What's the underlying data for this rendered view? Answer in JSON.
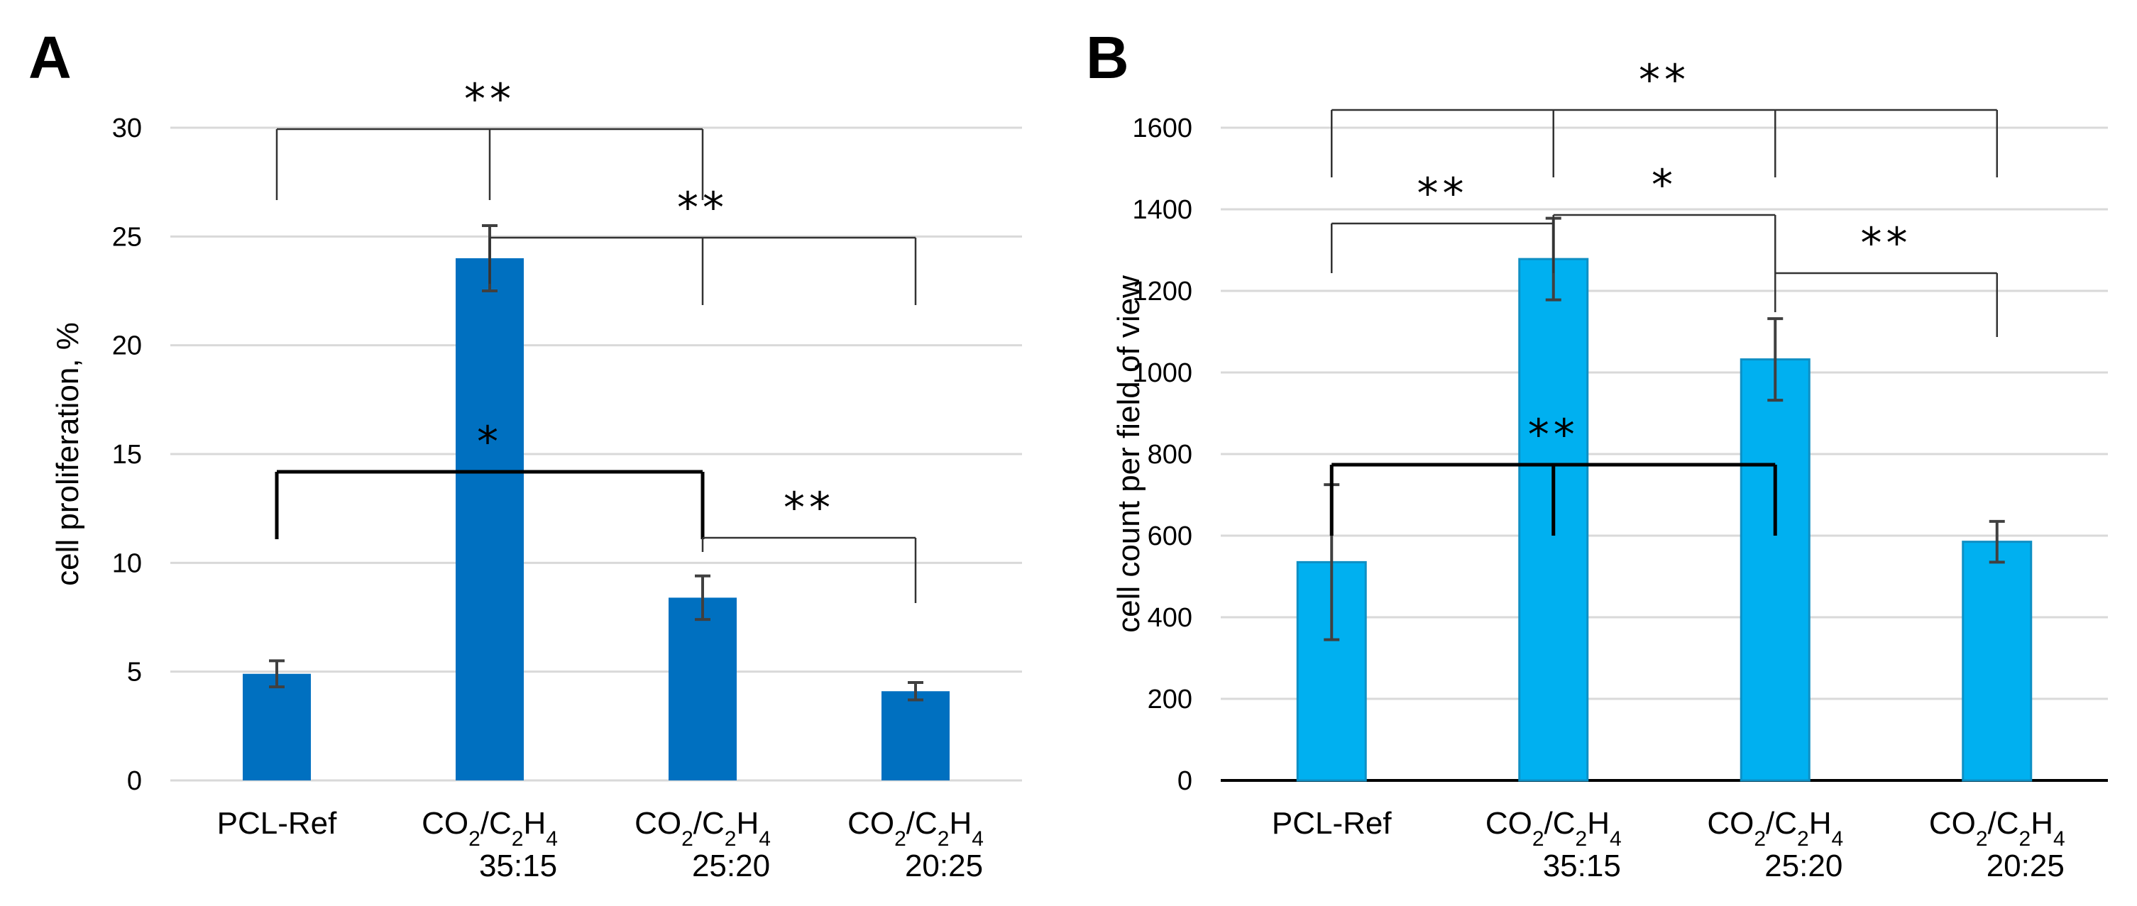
{
  "chart_data": [
    {
      "panel": "A",
      "type": "bar",
      "ylabel": "cell proliferation, %",
      "ylim": [
        0,
        30
      ],
      "yticks": [
        0,
        5,
        10,
        15,
        20,
        25,
        30
      ],
      "grid": true,
      "bar_color": "#0070c0",
      "categories": [
        {
          "name": "PCL-Ref"
        },
        {
          "name": "CO2/C2H4",
          "ratio": "35:15"
        },
        {
          "name": "CO2/C2H4",
          "ratio": "25:20"
        },
        {
          "name": "CO2/C2H4",
          "ratio": "20:25"
        }
      ],
      "values": [
        4.9,
        24.0,
        8.4,
        4.1
      ],
      "errors": [
        0.6,
        1.5,
        1.0,
        0.4
      ],
      "significance": [
        {
          "label": "**",
          "groups": [
            0,
            1,
            2
          ]
        },
        {
          "label": "**",
          "groups": [
            1,
            2,
            3
          ]
        },
        {
          "label": "*",
          "groups": [
            0,
            2
          ]
        },
        {
          "label": "**",
          "groups": [
            2,
            3
          ]
        }
      ]
    },
    {
      "panel": "B",
      "type": "bar",
      "ylabel": "cell count  per field of view",
      "ylim": [
        0,
        1600
      ],
      "yticks": [
        0,
        200,
        400,
        600,
        800,
        1000,
        1200,
        1400,
        1600
      ],
      "grid": true,
      "bar_color": "#00b0f0",
      "categories": [
        {
          "name": "PCL-Ref"
        },
        {
          "name": "CO2/C2H4",
          "ratio": "35:15"
        },
        {
          "name": "CO2/C2H4",
          "ratio": "25:20"
        },
        {
          "name": "CO2/C2H4",
          "ratio": "20:25"
        }
      ],
      "values": [
        535,
        1278,
        1032,
        585
      ],
      "errors": [
        190,
        100,
        100,
        50
      ],
      "significance": [
        {
          "label": "**",
          "groups": [
            0,
            1,
            2,
            3
          ]
        },
        {
          "label": "**",
          "groups": [
            0,
            1
          ]
        },
        {
          "label": "*",
          "groups": [
            1,
            2
          ]
        },
        {
          "label": "**",
          "groups": [
            2,
            3
          ]
        },
        {
          "label": "**",
          "groups": [
            0,
            1,
            2
          ]
        }
      ]
    }
  ]
}
